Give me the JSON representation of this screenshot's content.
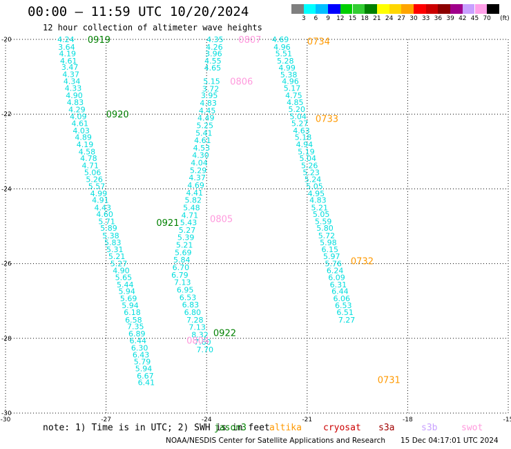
{
  "title": "00:00 – 11:59 UTC 10/20/2024",
  "subtitle": "12 hour collection of altimeter wave heights",
  "note": "note: 1) Time is in UTC; 2) SWH is in feet",
  "credit": "NOAA/NESDIS Center for Satellite Applications and Research",
  "generated": "15 Dec 04:17:01 UTC 2024",
  "colorbar": {
    "unit_label": "(ft)",
    "levels": [
      "3",
      "6",
      "9",
      "12",
      "15",
      "18",
      "21",
      "24",
      "27",
      "30",
      "33",
      "36",
      "39",
      "42",
      "45",
      "70"
    ],
    "colors": [
      "#7f7f7f",
      "#00ffff",
      "#00bfff",
      "#0000ff",
      "#00cf00",
      "#32cd32",
      "#008000",
      "#ffff00",
      "#ffd700",
      "#ffa500",
      "#ff0000",
      "#cc0000",
      "#8b0000",
      "#a0008b",
      "#c8a0ff",
      "#ffa0e8",
      "#000000"
    ]
  },
  "missions": [
    {
      "name": "jason3",
      "color": "#008000"
    },
    {
      "name": "altika",
      "color": "#ff9900"
    },
    {
      "name": "cryosat",
      "color": "#cc0000"
    },
    {
      "name": "s3a",
      "color": "#a00000"
    },
    {
      "name": "s3b",
      "color": "#c8a0ff"
    },
    {
      "name": "swot",
      "color": "#ff99dd"
    }
  ],
  "chart_data": {
    "type": "scatter",
    "xlim": [
      -30,
      -15
    ],
    "ylim": [
      -30,
      -20
    ],
    "xticks": [
      "-30",
      "-27",
      "-24",
      "-21",
      "-18",
      "-15"
    ],
    "yticks": [
      "-20",
      "-22",
      "-24",
      "-26",
      "-28",
      "-30"
    ],
    "point_color": "#00dddd",
    "tracks": [
      {
        "mission": "jason3",
        "points": [
          [
            -28.2,
            -20.0,
            "4.24"
          ],
          [
            -28.18,
            -20.2,
            "3.64"
          ],
          [
            -28.15,
            -20.38,
            "4.19"
          ],
          [
            -28.12,
            -20.57,
            "4.61"
          ],
          [
            -28.08,
            -20.74,
            "3.47"
          ],
          [
            -28.05,
            -20.93,
            "4.37"
          ],
          [
            -28.02,
            -21.12,
            "4.34"
          ],
          [
            -27.98,
            -21.3,
            "4.33"
          ],
          [
            -27.95,
            -21.5,
            "4.90"
          ],
          [
            -27.92,
            -21.68,
            "4.83"
          ],
          [
            -27.87,
            -21.88,
            "4.29"
          ],
          [
            -27.83,
            -22.06,
            "4.09"
          ],
          [
            -27.78,
            -22.25,
            "4.61"
          ],
          [
            -27.74,
            -22.44,
            "4.03"
          ],
          [
            -27.68,
            -22.62,
            "4.89"
          ],
          [
            -27.63,
            -22.81,
            "4.19"
          ],
          [
            -27.57,
            -23.0,
            "4.58"
          ],
          [
            -27.52,
            -23.18,
            "4.78"
          ],
          [
            -27.47,
            -23.37,
            "4.71"
          ],
          [
            -27.4,
            -23.56,
            "5.06"
          ],
          [
            -27.35,
            -23.74,
            "5.26"
          ],
          [
            -27.28,
            -23.93,
            "5.57"
          ],
          [
            -27.22,
            -24.12,
            "4.99"
          ],
          [
            -27.17,
            -24.3,
            "4.91"
          ],
          [
            -27.1,
            -24.5,
            "4.43"
          ],
          [
            -27.04,
            -24.68,
            "4.60"
          ],
          [
            -26.98,
            -24.87,
            "5.71"
          ],
          [
            -26.92,
            -25.05,
            "5.89"
          ],
          [
            -26.86,
            -25.25,
            "5.38"
          ],
          [
            -26.8,
            -25.43,
            "5.83"
          ],
          [
            -26.74,
            -25.62,
            "5.31"
          ],
          [
            -26.68,
            -25.8,
            "5.21"
          ],
          [
            -26.62,
            -26.0,
            "5.27"
          ],
          [
            -26.55,
            -26.18,
            "4.90"
          ],
          [
            -26.48,
            -26.37,
            "5.65"
          ],
          [
            -26.43,
            -26.56,
            "5.44"
          ],
          [
            -26.38,
            -26.74,
            "5.94"
          ],
          [
            -26.33,
            -26.93,
            "5.69"
          ],
          [
            -26.28,
            -27.12,
            "5.94"
          ],
          [
            -26.22,
            -27.3,
            "6.18"
          ],
          [
            -26.18,
            -27.5,
            "6.58"
          ],
          [
            -26.12,
            -27.68,
            "7.35"
          ],
          [
            -26.08,
            -27.87,
            "6.89"
          ],
          [
            -26.05,
            -28.06,
            "6.44"
          ],
          [
            -26.0,
            -28.25,
            "6.30"
          ],
          [
            -25.96,
            -28.44,
            "6.43"
          ],
          [
            -25.92,
            -28.62,
            "5.79"
          ],
          [
            -25.88,
            -28.81,
            "5.94"
          ],
          [
            -25.83,
            -29.0,
            "6.67"
          ],
          [
            -25.8,
            -29.18,
            "6.41"
          ]
        ],
        "time_labels": [
          {
            "lon": -27.55,
            "lat": -20.0,
            "text": "0919"
          },
          {
            "lon": -27.0,
            "lat": -22.0,
            "text": "0920"
          },
          {
            "lon": -25.5,
            "lat": -24.9,
            "text": "0921"
          },
          {
            "lon": -23.8,
            "lat": -27.85,
            "text": "0922"
          }
        ]
      },
      {
        "mission": "swot",
        "points": [
          [
            -23.75,
            -20.0,
            "4.35"
          ],
          [
            -23.77,
            -20.2,
            "4.26"
          ],
          [
            -23.79,
            -20.38,
            "3.96"
          ],
          [
            -23.81,
            -20.57,
            "4.55"
          ],
          [
            -23.82,
            -20.76,
            "4.65"
          ],
          [
            -23.85,
            -21.12,
            "5.15"
          ],
          [
            -23.88,
            -21.32,
            "3.72"
          ],
          [
            -23.92,
            -21.5,
            "3.95"
          ],
          [
            -23.95,
            -21.7,
            "4.83"
          ],
          [
            -23.98,
            -21.9,
            "4.45"
          ],
          [
            -24.02,
            -22.1,
            "4.49"
          ],
          [
            -24.05,
            -22.3,
            "5.25"
          ],
          [
            -24.08,
            -22.5,
            "5.41"
          ],
          [
            -24.12,
            -22.7,
            "4.61"
          ],
          [
            -24.15,
            -22.9,
            "4.53"
          ],
          [
            -24.18,
            -23.1,
            "4.30"
          ],
          [
            -24.22,
            -23.3,
            "4.04"
          ],
          [
            -24.25,
            -23.5,
            "5.29"
          ],
          [
            -24.28,
            -23.7,
            "4.37"
          ],
          [
            -24.32,
            -23.9,
            "4.69"
          ],
          [
            -24.36,
            -24.1,
            "4.41"
          ],
          [
            -24.4,
            -24.3,
            "5.82"
          ],
          [
            -24.45,
            -24.5,
            "5.48"
          ],
          [
            -24.5,
            -24.7,
            "4.71"
          ],
          [
            -24.54,
            -24.9,
            "5.43"
          ],
          [
            -24.58,
            -25.1,
            "5.27"
          ],
          [
            -24.62,
            -25.3,
            "5.39"
          ],
          [
            -24.66,
            -25.5,
            "5.21"
          ],
          [
            -24.7,
            -25.7,
            "5.69"
          ],
          [
            -24.74,
            -25.9,
            "5.84"
          ],
          [
            -24.77,
            -26.1,
            "6.70"
          ],
          [
            -24.8,
            -26.3,
            "6.79"
          ],
          [
            -24.72,
            -26.5,
            "7.13"
          ],
          [
            -24.64,
            -26.7,
            "6.95"
          ],
          [
            -24.56,
            -26.9,
            "6.53"
          ],
          [
            -24.48,
            -27.1,
            "6.83"
          ],
          [
            -24.42,
            -27.3,
            "6.80"
          ],
          [
            -24.35,
            -27.5,
            "7.28"
          ],
          [
            -24.28,
            -27.7,
            "7.13"
          ],
          [
            -24.2,
            -27.9,
            "8.32"
          ],
          [
            -24.12,
            -28.1,
            "7.60"
          ],
          [
            -24.05,
            -28.3,
            "7.70"
          ]
        ],
        "time_labels": [
          {
            "lon": -23.05,
            "lat": -20.0,
            "text": "0807"
          },
          {
            "lon": -23.3,
            "lat": -21.12,
            "text": "0806"
          },
          {
            "lon": -23.9,
            "lat": -24.8,
            "text": "0805"
          },
          {
            "lon": -24.6,
            "lat": -28.05,
            "text": "0804"
          }
        ]
      },
      {
        "mission": "altika",
        "points": [
          [
            -21.8,
            -20.0,
            "4.69"
          ],
          [
            -21.75,
            -20.2,
            "4.96"
          ],
          [
            -21.7,
            -20.38,
            "5.51"
          ],
          [
            -21.65,
            -20.57,
            "5.28"
          ],
          [
            -21.6,
            -20.76,
            "4.99"
          ],
          [
            -21.55,
            -20.94,
            "5.38"
          ],
          [
            -21.5,
            -21.12,
            "4.96"
          ],
          [
            -21.45,
            -21.3,
            "5.17"
          ],
          [
            -21.4,
            -21.5,
            "4.75"
          ],
          [
            -21.36,
            -21.68,
            "4.85"
          ],
          [
            -21.31,
            -21.87,
            "5.20"
          ],
          [
            -21.27,
            -22.06,
            "5.04"
          ],
          [
            -21.22,
            -22.25,
            "5.27"
          ],
          [
            -21.17,
            -22.44,
            "4.63"
          ],
          [
            -21.12,
            -22.62,
            "5.18"
          ],
          [
            -21.08,
            -22.81,
            "4.94"
          ],
          [
            -21.03,
            -23.0,
            "5.19"
          ],
          [
            -20.98,
            -23.18,
            "5.04"
          ],
          [
            -20.93,
            -23.37,
            "5.26"
          ],
          [
            -20.88,
            -23.56,
            "5.23"
          ],
          [
            -20.83,
            -23.74,
            "5.24"
          ],
          [
            -20.78,
            -23.93,
            "5.05"
          ],
          [
            -20.73,
            -24.12,
            "4.95"
          ],
          [
            -20.68,
            -24.3,
            "4.83"
          ],
          [
            -20.63,
            -24.5,
            "5.21"
          ],
          [
            -20.58,
            -24.68,
            "5.05"
          ],
          [
            -20.52,
            -24.87,
            "5.59"
          ],
          [
            -20.47,
            -25.05,
            "5.80"
          ],
          [
            -20.42,
            -25.25,
            "5.72"
          ],
          [
            -20.37,
            -25.43,
            "5.98"
          ],
          [
            -20.32,
            -25.62,
            "6.15"
          ],
          [
            -20.27,
            -25.8,
            "5.97"
          ],
          [
            -20.22,
            -26.0,
            "5.76"
          ],
          [
            -20.17,
            -26.18,
            "6.24"
          ],
          [
            -20.12,
            -26.37,
            "6.09"
          ],
          [
            -20.07,
            -26.56,
            "6.31"
          ],
          [
            -20.02,
            -26.74,
            "6.44"
          ],
          [
            -19.97,
            -26.93,
            "6.06"
          ],
          [
            -19.92,
            -27.12,
            "6.53"
          ],
          [
            -19.87,
            -27.3,
            "6.51"
          ],
          [
            -19.82,
            -27.5,
            "7.27"
          ]
        ],
        "time_labels": [
          {
            "lon": -21.0,
            "lat": -20.05,
            "text": "0734"
          },
          {
            "lon": -20.75,
            "lat": -22.12,
            "text": "0733"
          },
          {
            "lon": -19.7,
            "lat": -25.92,
            "text": "0732"
          },
          {
            "lon": -18.9,
            "lat": -29.1,
            "text": "0731"
          }
        ]
      }
    ]
  }
}
